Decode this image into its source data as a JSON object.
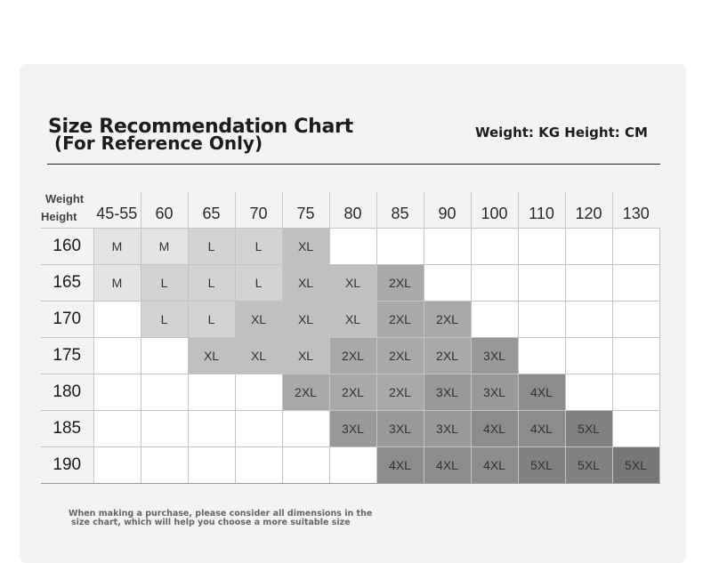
{
  "header": {
    "title": "Size Recommendation Chart",
    "subtitle": "(For Reference Only)",
    "units": "Weight: KG Height: CM"
  },
  "table": {
    "corner_weight": "Weight",
    "corner_height": "Height",
    "weights": [
      "45-55",
      "60",
      "65",
      "70",
      "75",
      "80",
      "85",
      "90",
      "100",
      "110",
      "120",
      "130"
    ],
    "rows": [
      {
        "height": "160",
        "cells": [
          "M",
          "M",
          "L",
          "L",
          "XL",
          "",
          "",
          "",
          "",
          "",
          "",
          ""
        ]
      },
      {
        "height": "165",
        "cells": [
          "M",
          "L",
          "L",
          "L",
          "XL",
          "XL",
          "2XL",
          "",
          "",
          "",
          "",
          ""
        ]
      },
      {
        "height": "170",
        "cells": [
          "",
          "L",
          "L",
          "XL",
          "XL",
          "XL",
          "2XL",
          "2XL",
          "",
          "",
          "",
          ""
        ]
      },
      {
        "height": "175",
        "cells": [
          "",
          "",
          "XL",
          "XL",
          "XL",
          "2XL",
          "2XL",
          "2XL",
          "3XL",
          "",
          "",
          ""
        ]
      },
      {
        "height": "180",
        "cells": [
          "",
          "",
          "",
          "",
          "2XL",
          "2XL",
          "2XL",
          "3XL",
          "3XL",
          "4XL",
          "",
          ""
        ]
      },
      {
        "height": "185",
        "cells": [
          "",
          "",
          "",
          "",
          "",
          "3XL",
          "3XL",
          "3XL",
          "4XL",
          "4XL",
          "5XL",
          ""
        ]
      },
      {
        "height": "190",
        "cells": [
          "",
          "",
          "",
          "",
          "",
          "",
          "4XL",
          "4XL",
          "4XL",
          "5XL",
          "5XL",
          "5XL"
        ]
      }
    ]
  },
  "footer": {
    "note_line1": "When making a purchase, please consider all dimensions in the",
    "note_line2": "size chart, which will help you choose a more suitable size"
  }
}
